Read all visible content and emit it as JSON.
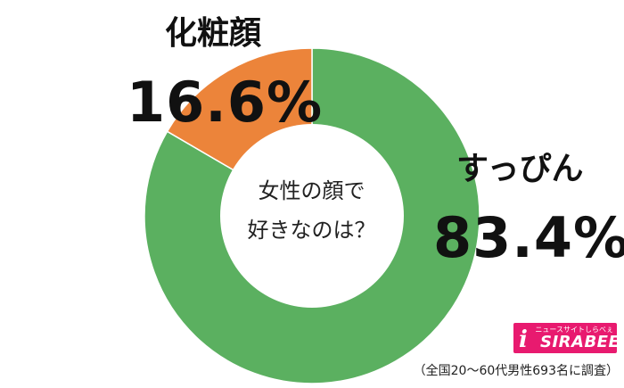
{
  "chart_data": {
    "type": "pie",
    "variant": "donut",
    "center_text_lines": [
      "女性の顔で",
      "好きなのは？"
    ],
    "categories": [
      "すっぴん",
      "化粧顔"
    ],
    "values": [
      83.4,
      16.6
    ],
    "value_labels": [
      "83.4%",
      "16.6%"
    ],
    "colors": [
      "#5bb060",
      "#ec843a"
    ],
    "start": "top, clockwise"
  },
  "logo": {
    "tagline": "ニュースサイトしらべぇ",
    "mark": "i",
    "name": "SIRABEE",
    "color": "#e81a6f"
  },
  "footnote": "（全国20〜60代男性693名に調査）"
}
